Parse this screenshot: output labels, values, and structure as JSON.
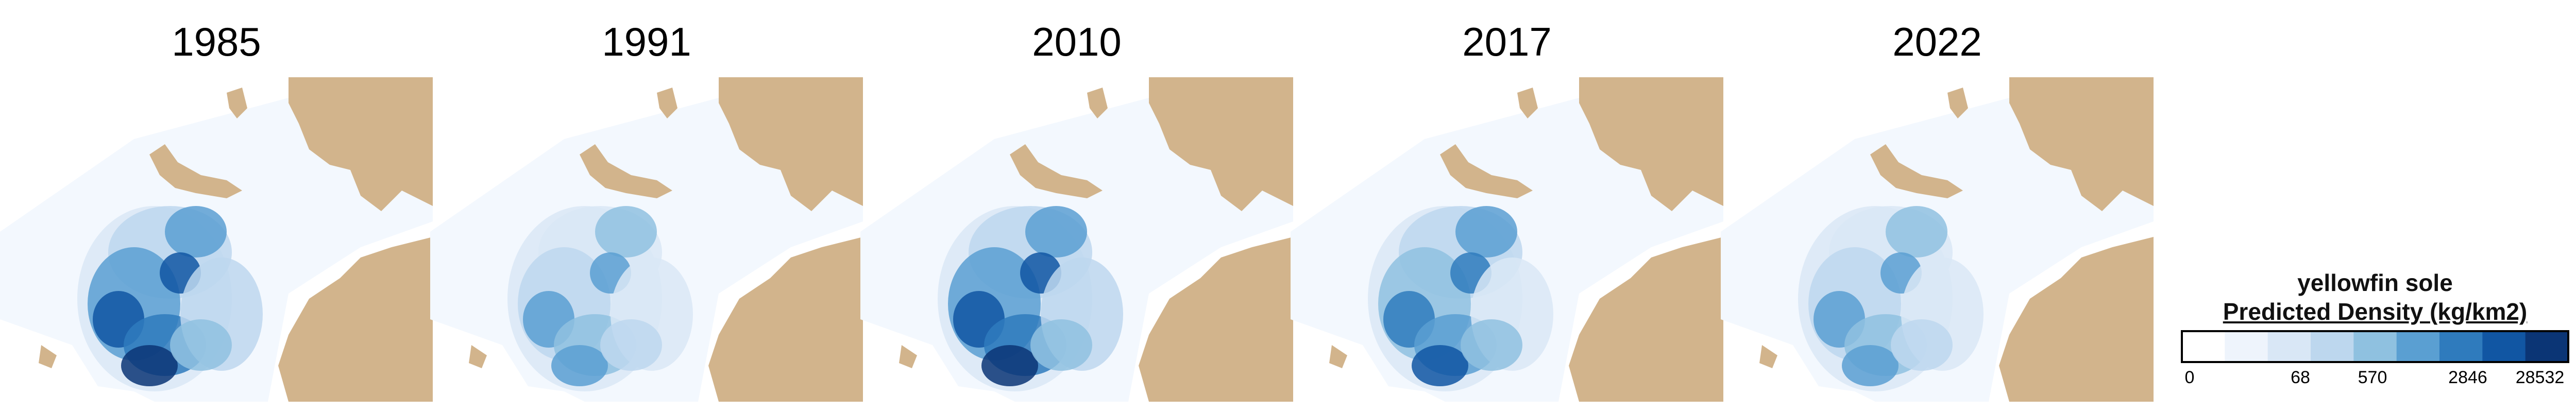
{
  "panels": [
    {
      "year": "1985",
      "intensity": 0.85
    },
    {
      "year": "1991",
      "intensity": 0.35
    },
    {
      "year": "2010",
      "intensity": 0.9
    },
    {
      "year": "2017",
      "intensity": 0.65
    },
    {
      "year": "2022",
      "intensity": 0.4
    }
  ],
  "legend": {
    "species": "yellowfin sole",
    "title": "Predicted Density (kg/km2)",
    "ticks": [
      "0",
      "68",
      "570",
      "2846",
      "28532"
    ],
    "colors": [
      "#ffffff",
      "#eef4fc",
      "#d9e7f6",
      "#bdd7ee",
      "#8fc1e0",
      "#5a9fd2",
      "#2f7bbd",
      "#1156a3",
      "#0b3575"
    ]
  },
  "colors": {
    "land": "#d2b48c",
    "survey_background": "#f3f8fe",
    "border": "#000000"
  }
}
